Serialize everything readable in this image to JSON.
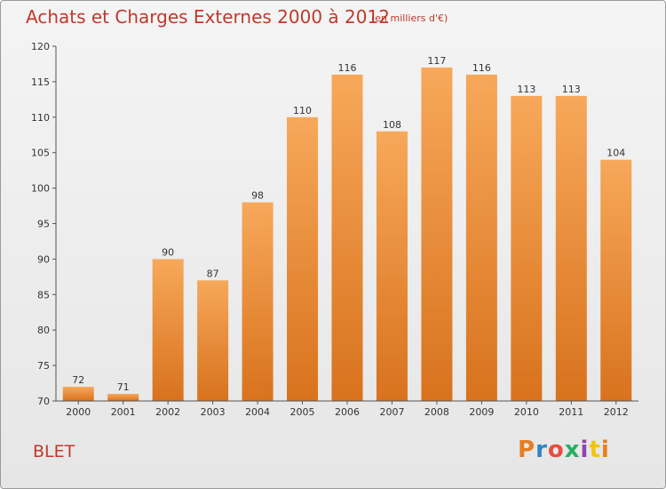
{
  "title": "Achats et Charges Externes 2000 à 2012",
  "subtitle": "(en milliers d'€)",
  "commune": "BLET",
  "logo_text": "Proxiti",
  "colors": {
    "title": "#c0392b",
    "bar_light": "#f7a85a",
    "bar_dark": "#d8721d"
  },
  "chart_data": {
    "type": "bar",
    "categories": [
      "2000",
      "2001",
      "2002",
      "2003",
      "2004",
      "2005",
      "2006",
      "2007",
      "2008",
      "2009",
      "2010",
      "2011",
      "2012"
    ],
    "values": [
      72,
      71,
      90,
      87,
      98,
      110,
      116,
      108,
      117,
      116,
      113,
      113,
      104
    ],
    "ylim": [
      70,
      120
    ],
    "yticks": [
      70,
      75,
      80,
      85,
      90,
      95,
      100,
      105,
      110,
      115,
      120
    ],
    "grid": false,
    "title": "Achats et Charges Externes 2000 à 2012",
    "xlabel": "",
    "ylabel": ""
  }
}
